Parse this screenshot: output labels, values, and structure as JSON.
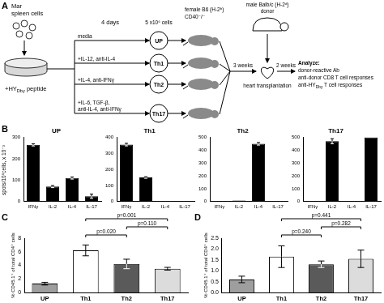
{
  "diagram": {
    "label": "A",
    "source": [
      "Mar",
      "spleen cells"
    ],
    "stimulus": [
      "+HY",
      {
        "sub": "Dby"
      },
      " peptide"
    ],
    "culture": "4 days",
    "conditions": [
      [
        "media"
      ],
      [
        "+IL-12, anti-IL-4"
      ],
      [
        "+IL-4, anti-IFNγ"
      ],
      [
        "+IL-6, TGF-β,",
        "anti-IL-4, anti-IFNγ"
      ]
    ],
    "groups": [
      "UP",
      "Th1",
      "Th2",
      "Th17"
    ],
    "transfer": "5 x10⁶ cells",
    "recipient": [
      "female B6 (H-2ᵇ)",
      "CD40⁻/⁻"
    ],
    "donor": [
      "male Balb/c (H-2ᵈ)",
      "donor"
    ],
    "interval1": "3 weeks",
    "procedure": "heart transplantation",
    "interval2": "2 weeks",
    "readouts": [
      "Analyze:",
      "donor-reactive Ab",
      "anti-donor CD8 T cell responses",
      [
        "anti-HY",
        {
          "sub": "Dby"
        },
        " T cell responses"
      ]
    ]
  },
  "panel_labels": [
    "B",
    "C",
    "D"
  ],
  "B_ylabel": "spots/10⁶cells, x 10⁻³",
  "chart_data": [
    {
      "type": "bar",
      "title": "UP",
      "categories": [
        "IFNγ",
        "IL-2",
        "IL-4",
        "IL-17"
      ],
      "values": [
        265,
        70,
        110,
        25
      ],
      "errors": [
        5,
        5,
        5,
        10
      ],
      "color": "#000000",
      "ylim": [
        0,
        300
      ],
      "yticks": [
        0,
        100,
        200,
        300
      ],
      "grid": false
    },
    {
      "type": "bar",
      "title": "Th1",
      "categories": [
        "IFNγ",
        "IL-2",
        "IL-4",
        "IL-17"
      ],
      "values": [
        355,
        150,
        3,
        3
      ],
      "errors": [
        8,
        5,
        0,
        0
      ],
      "color": "#000000",
      "ylim": [
        0,
        400
      ],
      "yticks": [
        0,
        100,
        200,
        300,
        400
      ],
      "grid": false
    },
    {
      "type": "bar",
      "title": "Th2",
      "categories": [
        "IFNγ",
        "IL-2",
        "IL-4",
        "IL-17"
      ],
      "values": [
        5,
        8,
        450,
        5
      ],
      "errors": [
        0,
        0,
        10,
        0
      ],
      "color": "#000000",
      "ylim": [
        0,
        500
      ],
      "yticks": [
        0,
        100,
        200,
        300,
        400,
        500
      ],
      "grid": false
    },
    {
      "type": "bar",
      "title": "Th17",
      "categories": [
        "IFNγ",
        "IL-2",
        "IL-4",
        "IL-17"
      ],
      "values": [
        5,
        470,
        3,
        500
      ],
      "errors": [
        0,
        20,
        0,
        0
      ],
      "color": "#000000",
      "ylim": [
        0,
        500
      ],
      "yticks": [
        0,
        100,
        200,
        300,
        400,
        500
      ],
      "grid": false
    },
    {
      "type": "bar",
      "ylabel": "% CD45.1⁺ of total CD4⁺ cells",
      "categories": [
        "UP",
        "Th1",
        "Th2",
        "Th17"
      ],
      "values": [
        1.3,
        6.2,
        4.2,
        3.5
      ],
      "errors": [
        0.2,
        0.8,
        0.7,
        0.2
      ],
      "colors": [
        "#9e9e9e",
        "#ffffff",
        "#5a5a5a",
        "#dcdcdc"
      ],
      "ylim": [
        0,
        8
      ],
      "yticks": [
        0,
        2,
        4,
        6,
        8
      ],
      "grid": false,
      "comparisons": [
        {
          "from": "Th1",
          "to": "Th2",
          "label": "p=0.020"
        },
        {
          "from": "Th2",
          "to": "Th17",
          "label": "p=0.110"
        },
        {
          "from": "Th1",
          "to": "Th17",
          "label": "p=0.001"
        }
      ]
    },
    {
      "type": "bar",
      "ylabel": "% CD45.1⁺ of total CD4⁺ cells",
      "categories": [
        "UP",
        "Th1",
        "Th2",
        "Th17"
      ],
      "values": [
        0.6,
        1.65,
        1.3,
        1.55
      ],
      "errors": [
        0.15,
        0.5,
        0.15,
        0.4
      ],
      "colors": [
        "#9e9e9e",
        "#ffffff",
        "#5a5a5a",
        "#dcdcdc"
      ],
      "ylim": [
        0,
        2.5
      ],
      "yticks": [
        {
          "value": 0,
          "label": "0.0"
        },
        0.5,
        {
          "value": 1,
          "label": "1.0"
        },
        1.5,
        {
          "value": 2,
          "label": "2.0"
        },
        2.5
      ],
      "grid": false,
      "comparisons": [
        {
          "from": "Th1",
          "to": "Th2",
          "label": "p=0.240"
        },
        {
          "from": "Th2",
          "to": "Th17",
          "label": "p=0.282"
        },
        {
          "from": "Th1",
          "to": "Th17",
          "label": "p=0.441"
        }
      ]
    }
  ]
}
